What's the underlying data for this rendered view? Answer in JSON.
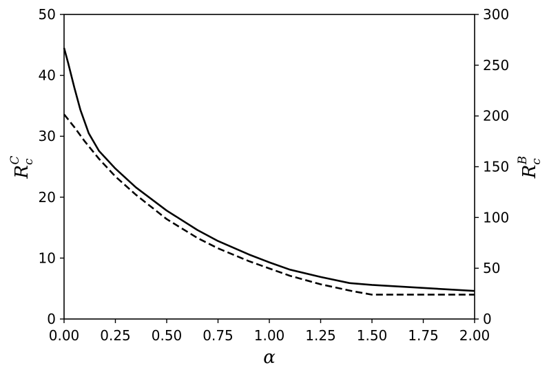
{
  "chart_data": {
    "type": "line",
    "xlabel": "α",
    "ylabel_left": {
      "base": "R",
      "sub": "c",
      "sup": "C"
    },
    "ylabel_right": {
      "base": "R",
      "sub": "c",
      "sup": "B"
    },
    "xlim": [
      0,
      2
    ],
    "ylim_left": [
      0,
      50
    ],
    "ylim_right": [
      0,
      300
    ],
    "x_ticks": [
      "0.00",
      "0.25",
      "0.50",
      "0.75",
      "1.00",
      "1.25",
      "1.50",
      "1.75",
      "2.00"
    ],
    "y_ticks_left": [
      "0",
      "10",
      "20",
      "30",
      "40",
      "50"
    ],
    "y_ticks_right": [
      "0",
      "50",
      "100",
      "150",
      "200",
      "250",
      "300"
    ],
    "grid": false,
    "series": [
      {
        "axis": "left",
        "style": "solid",
        "color": "#000000",
        "x": [
          0.0,
          0.02,
          0.05,
          0.08,
          0.12,
          0.17,
          0.25,
          0.35,
          0.5,
          0.65,
          0.75,
          0.9,
          1.0,
          1.1,
          1.25,
          1.39,
          1.5,
          1.75,
          2.0
        ],
        "y": [
          44.5,
          42.0,
          38.0,
          34.3,
          30.5,
          27.6,
          24.7,
          21.6,
          17.8,
          14.6,
          12.8,
          10.6,
          9.3,
          8.1,
          6.9,
          5.9,
          5.6,
          5.1,
          4.6
        ]
      },
      {
        "axis": "left",
        "style": "dashed",
        "color": "#000000",
        "x": [
          0.0,
          0.05,
          0.1,
          0.17,
          0.25,
          0.35,
          0.5,
          0.65,
          0.75,
          0.9,
          1.0,
          1.1,
          1.25,
          1.4,
          1.5,
          1.75,
          2.0
        ],
        "y": [
          33.6,
          31.5,
          29.2,
          26.3,
          23.4,
          20.4,
          16.4,
          13.3,
          11.6,
          9.5,
          8.3,
          7.1,
          5.7,
          4.6,
          4.0,
          4.0,
          4.0
        ]
      }
    ]
  }
}
